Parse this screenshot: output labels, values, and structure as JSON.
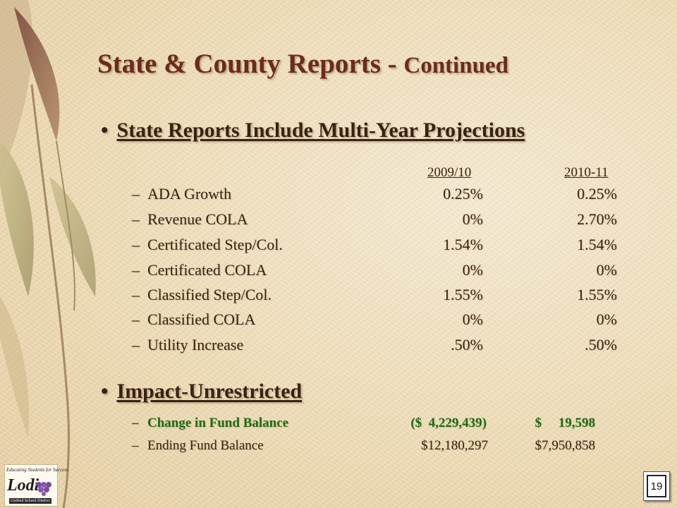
{
  "title": {
    "main": "State & County Reports - ",
    "suffix": "Continued"
  },
  "section1": {
    "bullet": "State Reports Include Multi-Year Projections",
    "columns": [
      "2009/10",
      "2010-11"
    ],
    "rows": [
      {
        "label": "ADA Growth",
        "v1": "0.25%",
        "v2": "0.25%"
      },
      {
        "label": "Revenue COLA",
        "v1": "0%",
        "v2": "2.70%"
      },
      {
        "label": "Certificated Step/Col.",
        "v1": "1.54%",
        "v2": "1.54%"
      },
      {
        "label": "Certificated COLA",
        "v1": "0%",
        "v2": "0%"
      },
      {
        "label": "Classified Step/Col.",
        "v1": "1.55%",
        "v2": "1.55%"
      },
      {
        "label": "Classified COLA",
        "v1": "0%",
        "v2": "0%"
      },
      {
        "label": "Utility Increase",
        "v1": ".50%",
        "v2": ".50%"
      }
    ]
  },
  "section2": {
    "bullet": "Impact-Unrestricted",
    "rows": [
      {
        "label": "Change in Fund Balance",
        "v1": "($  4,229,439)",
        "v2": "$     19,598"
      },
      {
        "label": "Ending Fund Balance",
        "v1": "$12,180,297",
        "v2": "$7,950,858"
      }
    ]
  },
  "dash": "–",
  "bullet_char": "•",
  "page_number": "19",
  "logo": {
    "tagline": "Educating Students for Success",
    "name": "Lodi",
    "subtitle": "Unified School District"
  },
  "colors": {
    "title": "#6b2b1e",
    "text": "#3a2112",
    "highlight": "#1f6a14"
  }
}
